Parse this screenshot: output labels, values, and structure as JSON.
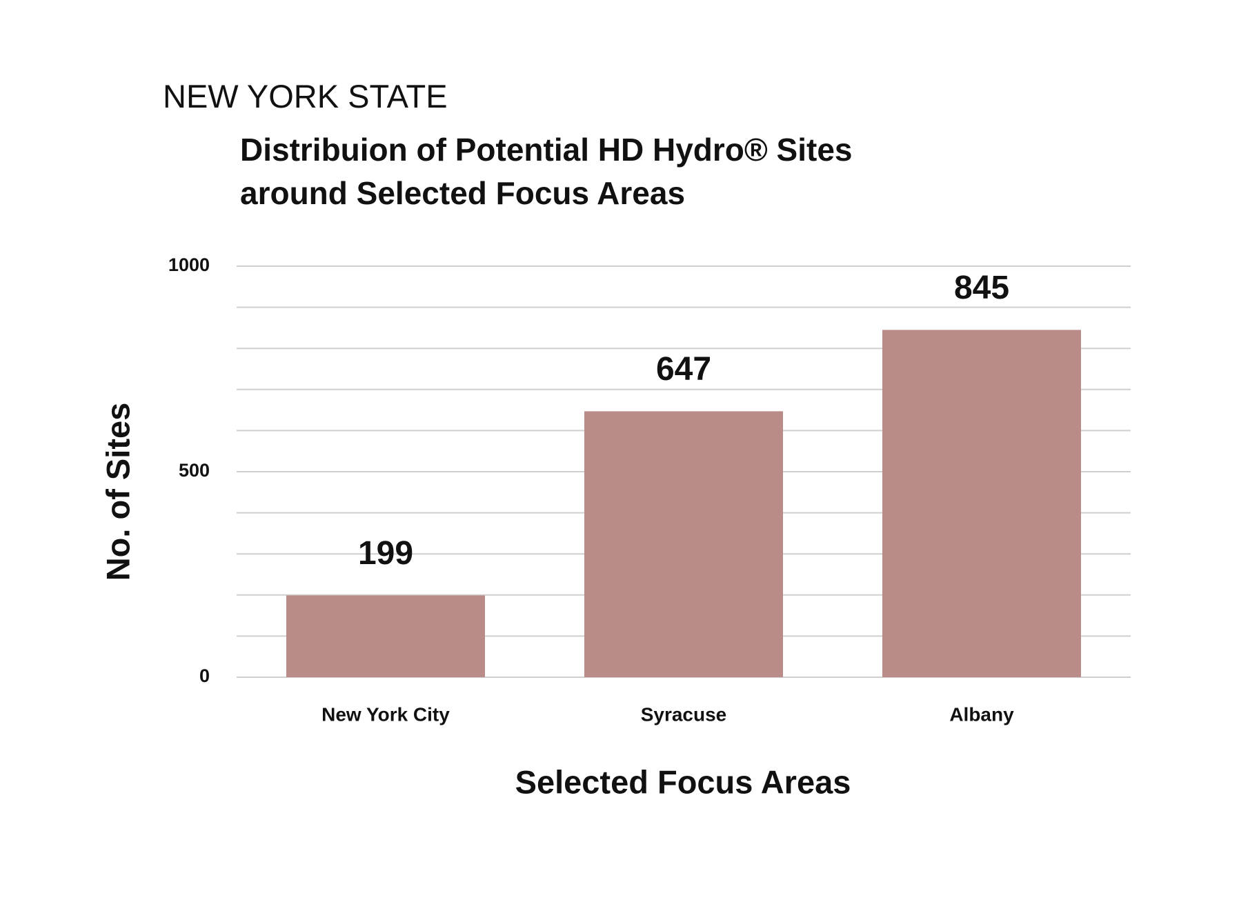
{
  "chart_data": {
    "type": "bar",
    "title": "NEW YORK STATE",
    "subtitle": "Distribuion of Potential HD Hydro® Sites around Selected Focus Areas",
    "x_label": "Selected Focus Areas",
    "y_label": "No. of Sites",
    "categories": [
      "New York City",
      "Syracuse",
      "Albany"
    ],
    "values": [
      199,
      647,
      845
    ],
    "color": "#b98b89",
    "ylim": [
      0,
      1000
    ],
    "yticks": [
      0,
      500,
      1000
    ],
    "yminorticks": [
      100,
      200,
      300,
      400,
      600,
      700,
      800,
      900
    ],
    "grid": true
  }
}
